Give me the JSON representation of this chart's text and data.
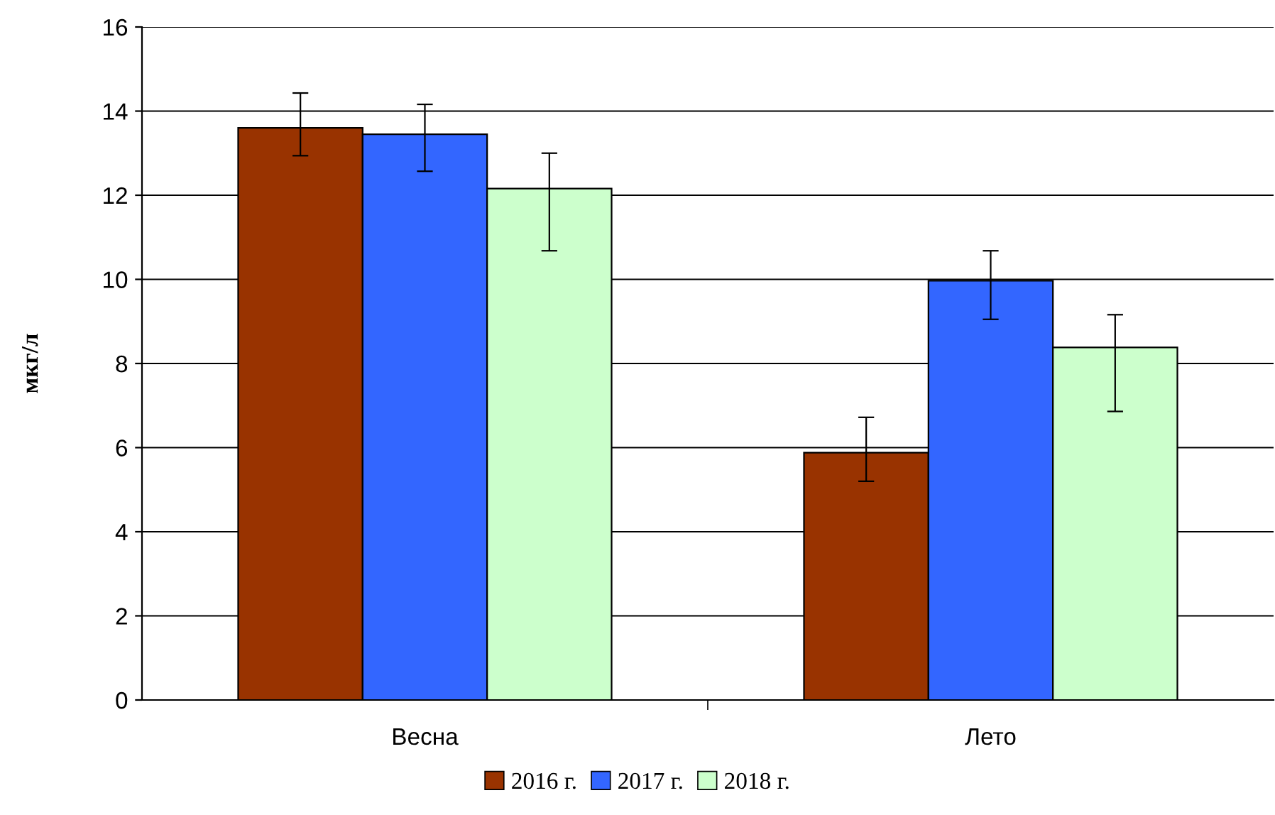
{
  "chart_data": {
    "type": "bar",
    "ylabel": "мкг/л",
    "categories": [
      "Весна",
      "Лето"
    ],
    "series": [
      {
        "name": "2016 г.",
        "color": "#993300",
        "values": [
          13.6,
          5.88
        ],
        "errors": [
          [
            12.94,
            14.43
          ],
          [
            5.2,
            6.72
          ]
        ]
      },
      {
        "name": "2017 г.",
        "color": "#3366ff",
        "values": [
          13.45,
          9.97
        ],
        "errors": [
          [
            12.57,
            14.16
          ],
          [
            9.05,
            10.68
          ]
        ]
      },
      {
        "name": "2018 г.",
        "color": "#ccffcc",
        "values": [
          12.16,
          8.38
        ],
        "errors": [
          [
            10.68,
            13.0
          ],
          [
            6.86,
            9.16
          ]
        ]
      }
    ],
    "ylim": [
      0,
      16
    ],
    "yticks": [
      0,
      2,
      4,
      6,
      8,
      10,
      12,
      14,
      16
    ],
    "grid": "y",
    "legend": "bottom"
  }
}
